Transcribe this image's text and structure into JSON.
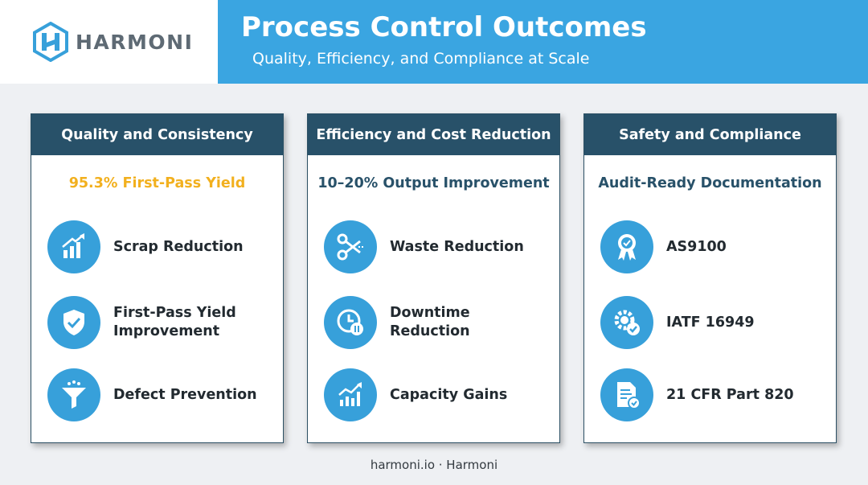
{
  "brand": {
    "name": "HARMONI"
  },
  "header": {
    "title": "Process Control Outcomes",
    "subtitle": "Quality, Efficiency, and Compliance at Scale"
  },
  "colors": {
    "header_bg": "#3aa5e1",
    "card_head_bg": "#285169",
    "icon_bg": "#37a0da",
    "highlight_gold": "#f2b01e",
    "highlight_navy": "#285169"
  },
  "cards": [
    {
      "title": "Quality and Consistency",
      "highlight": "95.3% First-Pass Yield",
      "highlight_color": "#f2b01e",
      "items": [
        {
          "icon": "bar-chart-up-icon",
          "label": "Scrap Reduction"
        },
        {
          "icon": "shield-check-icon",
          "label": "First-Pass Yield Improvement"
        },
        {
          "icon": "funnel-icon",
          "label": "Defect Prevention"
        }
      ]
    },
    {
      "title": "Efficiency and Cost Reduction",
      "highlight": "10–20% Output Improvement",
      "highlight_color": "#285169",
      "items": [
        {
          "icon": "scissors-icon",
          "label": "Waste Reduction"
        },
        {
          "icon": "clock-pause-icon",
          "label": "Downtime Reduction"
        },
        {
          "icon": "growth-chart-icon",
          "label": "Capacity Gains"
        }
      ]
    },
    {
      "title": "Safety and Compliance",
      "highlight": "Audit-Ready Documentation",
      "highlight_color": "#285169",
      "items": [
        {
          "icon": "award-badge-icon",
          "label": "AS9100"
        },
        {
          "icon": "gear-check-icon",
          "label": "IATF 16949"
        },
        {
          "icon": "document-check-icon",
          "label": "21 CFR Part 820"
        }
      ]
    }
  ],
  "footer": {
    "text": "harmoni.io · Harmoni"
  }
}
